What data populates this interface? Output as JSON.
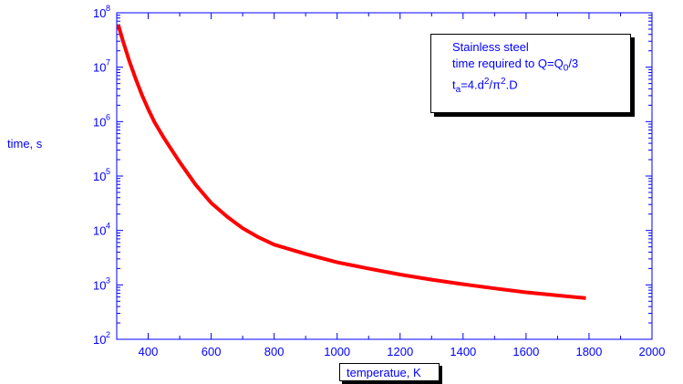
{
  "chart_data": {
    "type": "line",
    "yscale": "log",
    "xlim": [
      300,
      2000
    ],
    "ylim": [
      100,
      100000000
    ],
    "xticks": [
      400,
      600,
      800,
      1000,
      1200,
      1400,
      1600,
      1800,
      2000
    ],
    "yticks": [
      {
        "base": "10",
        "exp": "2",
        "value": 100
      },
      {
        "base": "10",
        "exp": "3",
        "value": 1000
      },
      {
        "base": "10",
        "exp": "4",
        "value": 10000
      },
      {
        "base": "10",
        "exp": "5",
        "value": 100000
      },
      {
        "base": "10",
        "exp": "6",
        "value": 1000000
      },
      {
        "base": "10",
        "exp": "7",
        "value": 10000000
      },
      {
        "base": "10",
        "exp": "8",
        "value": 100000000
      }
    ],
    "xlabel": "temperatue, K",
    "ylabel": "time, s",
    "series": [
      {
        "color": "#ff0000",
        "x": [
          305,
          320,
          340,
          360,
          380,
          400,
          420,
          450,
          480,
          500,
          550,
          600,
          650,
          700,
          750,
          800,
          900,
          1000,
          1100,
          1200,
          1300,
          1400,
          1500,
          1600,
          1700,
          1790
        ],
        "y": [
          60000000,
          30000000,
          13000000,
          6200000,
          3100000,
          1700000,
          980000,
          500000,
          270000,
          180000,
          70000,
          32000,
          18000,
          11000,
          7500,
          5500,
          3700,
          2600,
          2000,
          1550,
          1250,
          1030,
          860,
          730,
          640,
          570
        ]
      }
    ],
    "legend": {
      "line1": "Stainless steel",
      "line2": "time required to Q=Q",
      "line2_sub": "0",
      "line2_end": "/3",
      "line3_a": "t",
      "line3_a_sub": "a",
      "line3_b": "=4.d",
      "line3_b_sup": "2",
      "line3_c": "/π",
      "line3_c_sup": "2",
      "line3_d": ".D"
    },
    "axis_color": "#0000ff",
    "grid": false,
    "legend_position": "top-right"
  }
}
